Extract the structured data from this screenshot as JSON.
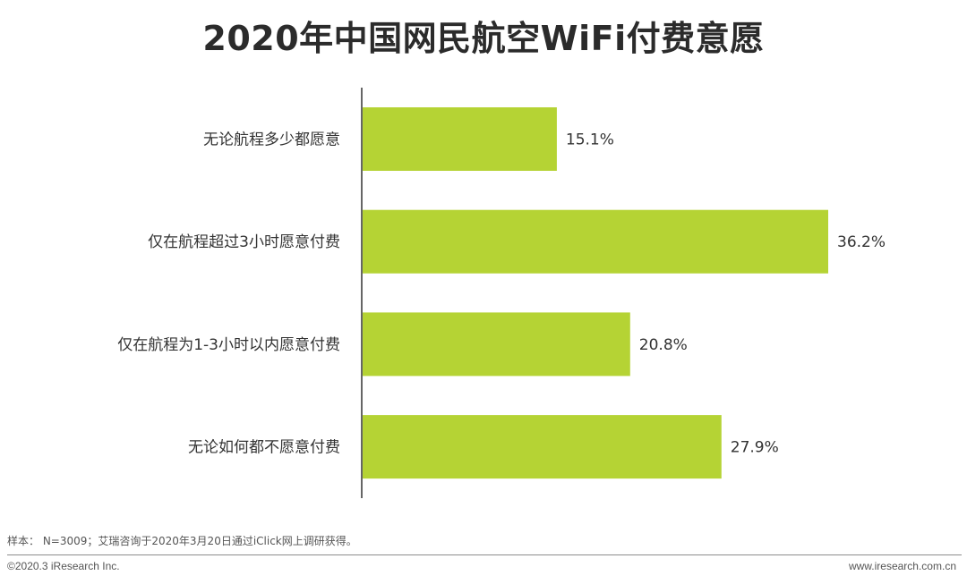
{
  "title": "2020年中国网民航空WiFi付费意愿",
  "chart_data": {
    "type": "bar",
    "orientation": "horizontal",
    "title": "2020年中国网民航空WiFi付费意愿",
    "categories": [
      "无论航程多少都愿意",
      "仅在航程超过3小时愿意付费",
      "仅在航程为1-3小时以内愿意付费",
      "无论如何都不愿意付费"
    ],
    "values": [
      15.1,
      36.2,
      20.8,
      27.9
    ],
    "value_labels": [
      "15.1%",
      "36.2%",
      "20.8%",
      "27.9%"
    ],
    "unit": "%",
    "xlim": [
      0,
      40
    ],
    "grid": false,
    "legend": "none",
    "bar_color": "#b5d334"
  },
  "footer": {
    "note": "样本： N=3009；艾瑞咨询于2020年3月20日通过iClick网上调研获得。",
    "copyright": "©2020.3 iResearch Inc.",
    "website": "www.iresearch.com.cn"
  }
}
